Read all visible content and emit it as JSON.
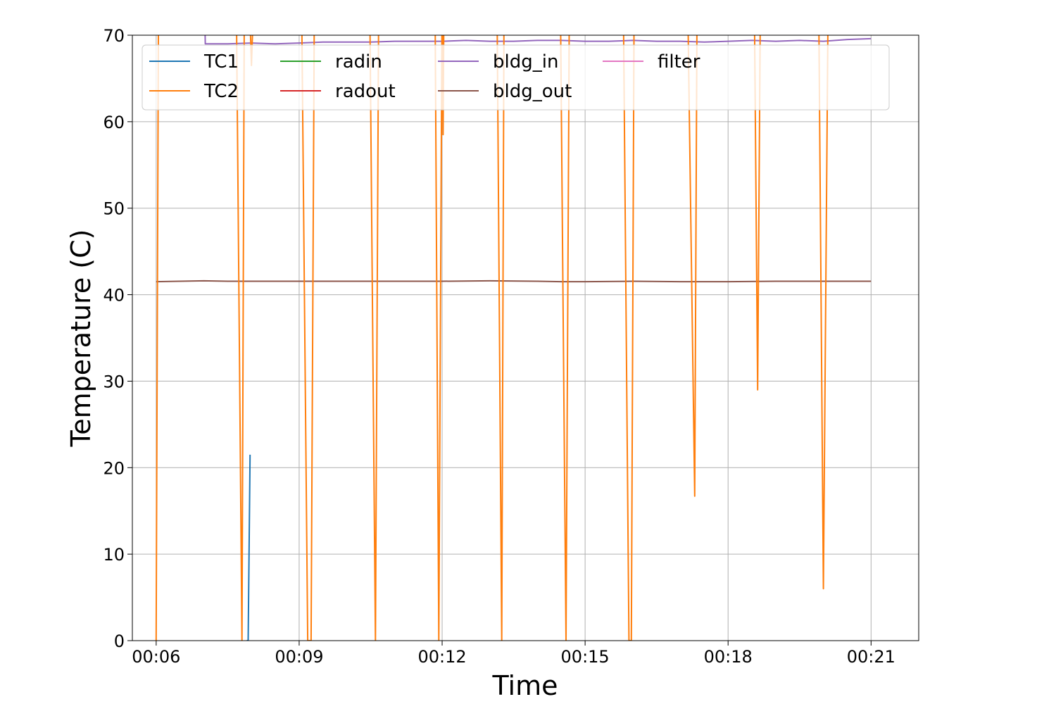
{
  "chart_data": {
    "type": "line",
    "title": "",
    "xlabel": "Time",
    "ylabel": "Temperature (C)",
    "x_unit": "minutes",
    "xlim": [
      5.5,
      22.0
    ],
    "ylim": [
      0,
      70
    ],
    "xticks": [
      {
        "value": 6,
        "label": "00:06"
      },
      {
        "value": 9,
        "label": "00:09"
      },
      {
        "value": 12,
        "label": "00:12"
      },
      {
        "value": 15,
        "label": "00:15"
      },
      {
        "value": 18,
        "label": "00:18"
      },
      {
        "value": 21,
        "label": "00:21"
      }
    ],
    "yticks": [
      0,
      10,
      20,
      30,
      40,
      50,
      60,
      70
    ],
    "grid": true,
    "legend": {
      "placement": "top",
      "columns": 5
    },
    "series": [
      {
        "name": "TC1",
        "color": "#1f77b4",
        "points": [
          [
            7.9,
            0
          ],
          [
            7.93,
            0
          ],
          [
            7.97,
            21.5
          ]
        ]
      },
      {
        "name": "TC2",
        "color": "#ff7f0e",
        "points": [
          [
            6.0,
            0
          ],
          [
            6.05,
            75
          ],
          [
            7.68,
            75
          ],
          [
            7.8,
            0
          ],
          [
            7.85,
            75
          ],
          [
            7.95,
            75
          ],
          [
            8.0,
            66.5
          ],
          [
            8.05,
            75
          ],
          [
            9.05,
            75
          ],
          [
            9.18,
            0
          ],
          [
            9.25,
            0
          ],
          [
            9.32,
            75
          ],
          [
            10.48,
            75
          ],
          [
            10.6,
            0
          ],
          [
            10.67,
            75
          ],
          [
            11.85,
            75
          ],
          [
            11.93,
            0
          ],
          [
            12.0,
            75
          ],
          [
            12.02,
            58.5
          ],
          [
            12.04,
            75
          ],
          [
            13.15,
            75
          ],
          [
            13.25,
            0
          ],
          [
            13.3,
            75
          ],
          [
            14.48,
            75
          ],
          [
            14.6,
            0
          ],
          [
            14.67,
            75
          ],
          [
            15.8,
            75
          ],
          [
            15.92,
            0
          ],
          [
            15.97,
            0
          ],
          [
            16.03,
            75
          ],
          [
            17.15,
            75
          ],
          [
            17.3,
            16.7
          ],
          [
            17.35,
            75
          ],
          [
            18.55,
            75
          ],
          [
            18.62,
            29
          ],
          [
            18.68,
            75
          ],
          [
            19.9,
            75
          ],
          [
            20.0,
            6
          ],
          [
            20.1,
            75
          ]
        ]
      },
      {
        "name": "radin",
        "color": "#2ca02c",
        "points": []
      },
      {
        "name": "radout",
        "color": "#d62728",
        "points": []
      },
      {
        "name": "bldg_in",
        "color": "#9467bd",
        "points": [
          [
            7.02,
            72
          ],
          [
            7.03,
            69.0
          ],
          [
            7.5,
            69.0
          ],
          [
            8.0,
            69.1
          ],
          [
            8.5,
            69.0
          ],
          [
            9.0,
            69.1
          ],
          [
            9.5,
            69.2
          ],
          [
            10.0,
            69.2
          ],
          [
            10.5,
            69.2
          ],
          [
            11.0,
            69.3
          ],
          [
            11.5,
            69.3
          ],
          [
            12.0,
            69.3
          ],
          [
            12.5,
            69.4
          ],
          [
            13.0,
            69.3
          ],
          [
            13.5,
            69.3
          ],
          [
            14.0,
            69.4
          ],
          [
            14.5,
            69.4
          ],
          [
            15.0,
            69.3
          ],
          [
            15.5,
            69.3
          ],
          [
            16.0,
            69.4
          ],
          [
            16.5,
            69.3
          ],
          [
            17.0,
            69.3
          ],
          [
            17.5,
            69.2
          ],
          [
            18.0,
            69.3
          ],
          [
            18.5,
            69.4
          ],
          [
            19.0,
            69.3
          ],
          [
            19.5,
            69.4
          ],
          [
            20.0,
            69.3
          ],
          [
            20.5,
            69.5
          ],
          [
            21.0,
            69.6
          ]
        ]
      },
      {
        "name": "bldg_out",
        "color": "#8c564b",
        "points": [
          [
            6.0,
            41.5
          ],
          [
            6.5,
            41.55
          ],
          [
            7.0,
            41.6
          ],
          [
            7.5,
            41.55
          ],
          [
            8.0,
            41.55
          ],
          [
            9.0,
            41.55
          ],
          [
            10.0,
            41.55
          ],
          [
            11.0,
            41.55
          ],
          [
            12.0,
            41.55
          ],
          [
            13.0,
            41.6
          ],
          [
            14.0,
            41.55
          ],
          [
            14.5,
            41.5
          ],
          [
            15.0,
            41.5
          ],
          [
            16.0,
            41.55
          ],
          [
            17.0,
            41.5
          ],
          [
            18.0,
            41.5
          ],
          [
            19.0,
            41.55
          ],
          [
            20.0,
            41.55
          ],
          [
            21.0,
            41.55
          ]
        ]
      },
      {
        "name": "filter",
        "color": "#e377c2",
        "points": []
      }
    ]
  }
}
